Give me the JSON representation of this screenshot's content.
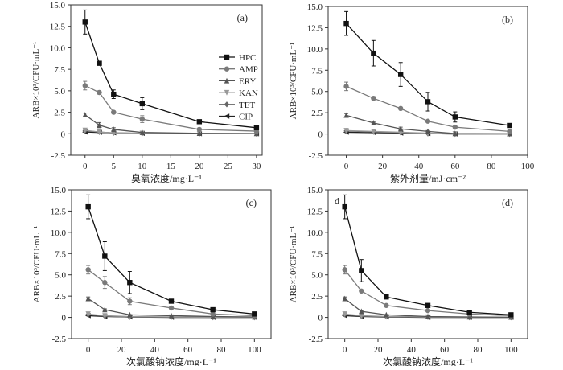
{
  "chart_data": [
    {
      "type": "line",
      "panel_label": "(a)",
      "xlabel": "臭氧浓度/mg·L⁻¹",
      "ylabel": "ARB×10³/CFU·mL⁻¹",
      "xlim": [
        -2.5,
        31
      ],
      "ylim": [
        -2.5,
        15
      ],
      "xticks": [
        0,
        5,
        10,
        15,
        20,
        25,
        30
      ],
      "yticks": [
        -2.5,
        0,
        2.5,
        5,
        7.5,
        10,
        12.5,
        15
      ],
      "ytick_labels": [
        "-2.5",
        "0",
        "2.5",
        "5.0",
        "7.5",
        "10.0",
        "12.5",
        "15.0"
      ],
      "legend": "center-right",
      "x": [
        0,
        2.5,
        5,
        10,
        20,
        30
      ],
      "series": [
        {
          "name": "HPC",
          "values": [
            13,
            8.2,
            4.6,
            3.5,
            1.4,
            0.7
          ],
          "error": [
            1.4,
            0.2,
            0.5,
            0.7,
            0.2,
            0.1
          ]
        },
        {
          "name": "AMP",
          "values": [
            5.6,
            4.8,
            2.5,
            1.7,
            0.5,
            0.3
          ],
          "error": [
            0.5,
            0.2,
            0.1,
            0.4,
            0.1,
            0.05
          ]
        },
        {
          "name": "ERY",
          "values": [
            2.2,
            1.0,
            0.5,
            0.15,
            0.05,
            0.02
          ],
          "error": [
            0.2,
            0.3,
            0.2,
            0.05,
            0.02,
            0.01
          ]
        },
        {
          "name": "KAN",
          "values": [
            0.4,
            0.2,
            0.1,
            0.05,
            0.02,
            0.01
          ],
          "error": [
            0.05,
            0.05,
            0.02,
            0.02,
            0.01,
            0.01
          ]
        },
        {
          "name": "TET",
          "values": [
            0.35,
            0.2,
            0.1,
            0.05,
            0,
            0
          ],
          "error": [
            0.05,
            0.05,
            0.02,
            0.02,
            0,
            0
          ]
        },
        {
          "name": "CIP",
          "values": [
            0.2,
            0.15,
            0.1,
            0.05,
            0,
            0
          ],
          "error": [
            0.05,
            0.03,
            0.02,
            0.02,
            0,
            0
          ]
        }
      ]
    },
    {
      "type": "line",
      "panel_label": "(b)",
      "xlabel": "紫外剂量/mJ·cm⁻²",
      "ylabel": "ARB×10³/CFU·mL⁻¹",
      "xlim": [
        -10,
        100
      ],
      "ylim": [
        -2.5,
        15
      ],
      "xticks": [
        0,
        20,
        40,
        60,
        80,
        100
      ],
      "yticks": [
        -2.5,
        0,
        2.5,
        5,
        7.5,
        10,
        12.5,
        15
      ],
      "ytick_labels": [
        "-2.5",
        "0",
        "2.5",
        "5.0",
        "7.5",
        "10.0",
        "12.5",
        "15.0"
      ],
      "x": [
        0,
        15,
        30,
        45,
        60,
        90
      ],
      "series": [
        {
          "name": "HPC",
          "values": [
            13,
            9.5,
            7.0,
            3.8,
            2.0,
            1.0
          ],
          "error": [
            1.4,
            1.5,
            1.4,
            1.1,
            0.6,
            0.2
          ]
        },
        {
          "name": "AMP",
          "values": [
            5.6,
            4.2,
            3.0,
            1.5,
            0.8,
            0.3
          ],
          "error": [
            0.5,
            0.2,
            0.1,
            0.1,
            0.2,
            0.05
          ]
        },
        {
          "name": "ERY",
          "values": [
            2.2,
            1.3,
            0.6,
            0.3,
            0.05,
            0.02
          ],
          "error": [
            0.2,
            0.1,
            0.2,
            0.1,
            0.02,
            0.01
          ]
        },
        {
          "name": "KAN",
          "values": [
            0.4,
            0.3,
            0.2,
            0.1,
            0.02,
            0
          ],
          "error": [
            0.05,
            0.05,
            0.03,
            0.02,
            0.01,
            0
          ]
        },
        {
          "name": "TET",
          "values": [
            0.35,
            0.25,
            0.15,
            0.05,
            0,
            0
          ],
          "error": [
            0.05,
            0.05,
            0.03,
            0.02,
            0,
            0
          ]
        },
        {
          "name": "CIP",
          "values": [
            0.2,
            0.15,
            0.1,
            0.05,
            0,
            0
          ],
          "error": [
            0.05,
            0.03,
            0.02,
            0.02,
            0,
            0
          ]
        }
      ]
    },
    {
      "type": "line",
      "panel_label": "(c)",
      "xlabel": "次氯酸钠浓度/mg·L⁻¹",
      "ylabel": "ARB×10³/CFU·mL⁻¹",
      "xlim": [
        -10,
        110
      ],
      "ylim": [
        -2.5,
        15
      ],
      "xticks": [
        0,
        20,
        40,
        60,
        80,
        100
      ],
      "yticks": [
        -2.5,
        0,
        2.5,
        5,
        7.5,
        10,
        12.5,
        15
      ],
      "ytick_labels": [
        "-2.5",
        "0",
        "2.5",
        "5.0",
        "7.5",
        "10.0",
        "12.5",
        "15.0"
      ],
      "x": [
        0,
        10,
        25,
        50,
        75,
        100
      ],
      "series": [
        {
          "name": "HPC",
          "values": [
            13,
            7.2,
            4.1,
            1.9,
            0.9,
            0.4
          ],
          "error": [
            1.4,
            1.7,
            1.3,
            0.1,
            0.1,
            0.05
          ]
        },
        {
          "name": "AMP",
          "values": [
            5.6,
            4.1,
            1.9,
            1.1,
            0.4,
            0.2
          ],
          "error": [
            0.5,
            0.7,
            0.4,
            0.1,
            0.05,
            0.03
          ]
        },
        {
          "name": "ERY",
          "values": [
            2.2,
            0.9,
            0.3,
            0.2,
            0.1,
            0.05
          ],
          "error": [
            0.2,
            0.1,
            0.05,
            0.03,
            0.02,
            0.01
          ]
        },
        {
          "name": "KAN",
          "values": [
            0.4,
            0.2,
            0.1,
            0.05,
            0.02,
            0
          ],
          "error": [
            0.05,
            0.03,
            0.02,
            0.01,
            0.01,
            0
          ]
        },
        {
          "name": "TET",
          "values": [
            0.35,
            0.15,
            0.05,
            0.05,
            0,
            0
          ],
          "error": [
            0.05,
            0.03,
            0.02,
            0.01,
            0,
            0
          ]
        },
        {
          "name": "CIP",
          "values": [
            0.2,
            0.1,
            0.05,
            0,
            0,
            0
          ],
          "error": [
            0.05,
            0.02,
            0.01,
            0,
            0,
            0
          ]
        }
      ]
    },
    {
      "type": "line",
      "panel_label": "(d)",
      "corner_label": "d",
      "xlabel": "次氯酸钠浓度/mg·L⁻¹",
      "ylabel": "ARB×10³/CFU·mL⁻¹",
      "xlim": [
        -10,
        110
      ],
      "ylim": [
        -2.5,
        15
      ],
      "xticks": [
        0,
        20,
        40,
        60,
        80,
        100
      ],
      "yticks": [
        -2.5,
        0,
        2.5,
        5,
        7.5,
        10,
        12.5,
        15
      ],
      "ytick_labels": [
        "-2.5",
        "0",
        "2.5",
        "5.0",
        "7.5",
        "10.0",
        "12.5",
        "15.0"
      ],
      "x": [
        0,
        10,
        25,
        50,
        75,
        100
      ],
      "series": [
        {
          "name": "HPC",
          "values": [
            13,
            5.5,
            2.4,
            1.4,
            0.6,
            0.3
          ],
          "error": [
            1.4,
            1.3,
            0.1,
            0.2,
            0.1,
            0.05
          ]
        },
        {
          "name": "AMP",
          "values": [
            5.6,
            3.1,
            1.4,
            0.8,
            0.4,
            0.2
          ],
          "error": [
            0.5,
            0.1,
            0.1,
            0.05,
            0.03,
            0.02
          ]
        },
        {
          "name": "ERY",
          "values": [
            2.2,
            0.7,
            0.3,
            0.1,
            0.05,
            0.02
          ],
          "error": [
            0.2,
            0.1,
            0.05,
            0.02,
            0.01,
            0.01
          ]
        },
        {
          "name": "KAN",
          "values": [
            0.4,
            0.2,
            0.1,
            0.05,
            0.02,
            0
          ],
          "error": [
            0.05,
            0.03,
            0.02,
            0.01,
            0.01,
            0
          ]
        },
        {
          "name": "TET",
          "values": [
            0.35,
            0.15,
            0.1,
            0.05,
            0,
            0
          ],
          "error": [
            0.05,
            0.03,
            0.02,
            0.01,
            0,
            0
          ]
        },
        {
          "name": "CIP",
          "values": [
            0.2,
            0.1,
            0.05,
            0,
            0,
            0
          ],
          "error": [
            0.05,
            0.02,
            0.01,
            0,
            0,
            0
          ]
        }
      ]
    }
  ],
  "series_style": {
    "HPC": {
      "color": "#111111",
      "marker": "square"
    },
    "AMP": {
      "color": "#7a7a7a",
      "marker": "circle"
    },
    "ERY": {
      "color": "#555555",
      "marker": "triangle-up"
    },
    "KAN": {
      "color": "#999999",
      "marker": "triangle-down"
    },
    "TET": {
      "color": "#666666",
      "marker": "diamond"
    },
    "CIP": {
      "color": "#222222",
      "marker": "triangle-left"
    }
  }
}
